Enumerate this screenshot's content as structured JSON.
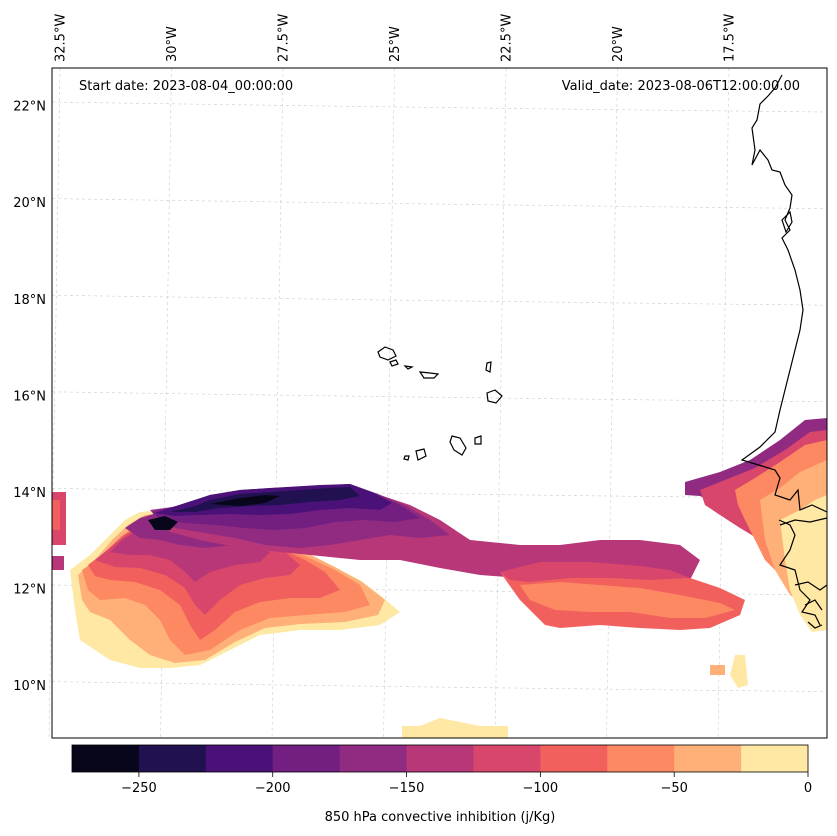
{
  "chart_data": {
    "type": "contourf-map",
    "variable_label": "850 hPa convective inhibition (j/Kg)",
    "start_date_label": "Start date: 2023-08-04_00:00:00",
    "valid_date_label": "Valid_date: 2023-08-06T12:00:00.00",
    "lon_ticks": [
      "32.5°W",
      "30°W",
      "27.5°W",
      "25°W",
      "22.5°W",
      "20°W",
      "17.5°W"
    ],
    "lon_values": [
      -32.5,
      -30,
      -27.5,
      -25,
      -22.5,
      -20,
      -17.5
    ],
    "lat_ticks": [
      "22°N",
      "20°N",
      "18°N",
      "16°N",
      "14°N",
      "12°N",
      "10°N"
    ],
    "lat_values": [
      22,
      20,
      18,
      16,
      14,
      12,
      10
    ],
    "colorbar": {
      "levels": [
        -275,
        -250,
        -225,
        -200,
        -175,
        -150,
        -125,
        -100,
        -75,
        -50,
        -25,
        0
      ],
      "tick_values": [
        -250,
        -200,
        -150,
        -100,
        -50,
        0
      ],
      "tick_labels": [
        "−250",
        "−200",
        "−150",
        "−100",
        "−50",
        "0"
      ],
      "colors": [
        "#07061b",
        "#221150",
        "#4a1278",
        "#721f81",
        "#912b81",
        "#b73779",
        "#d9466b",
        "#f1605d",
        "#fc8961",
        "#feb078",
        "#fee8a4"
      ]
    },
    "gridlines": true,
    "coastlines": true
  }
}
